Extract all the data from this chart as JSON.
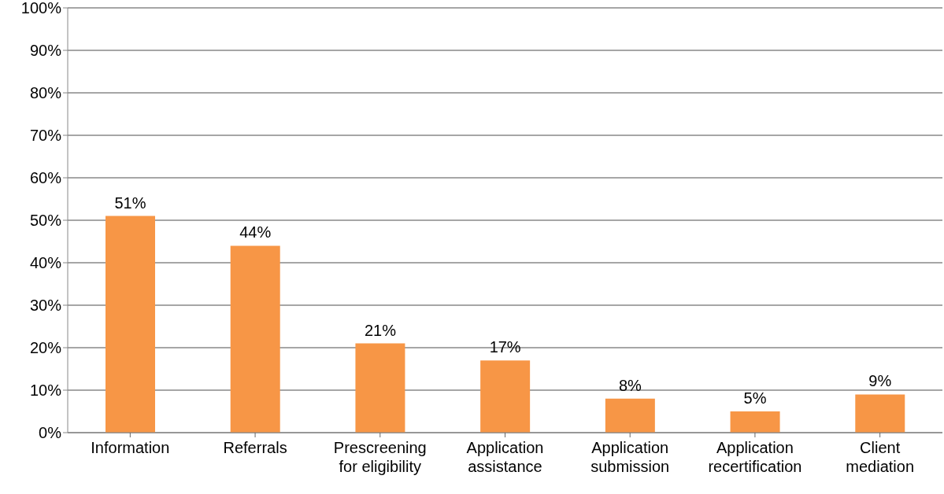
{
  "chart_data": {
    "type": "bar",
    "categories": [
      "Information",
      "Referrals",
      "Prescreening for eligibility",
      "Application assistance",
      "Application submission",
      "Application recertification",
      "Client mediation"
    ],
    "values": [
      51,
      44,
      21,
      17,
      8,
      5,
      9
    ],
    "value_labels": [
      "51%",
      "44%",
      "21%",
      "17%",
      "8%",
      "5%",
      "9%"
    ],
    "color": "#f79646",
    "ylim": [
      0,
      100
    ],
    "yticks": [
      {
        "value": 0,
        "label": "0%"
      },
      {
        "value": 10,
        "label": "10%"
      },
      {
        "value": 20,
        "label": "20%"
      },
      {
        "value": 30,
        "label": "30%"
      },
      {
        "value": 40,
        "label": "40%"
      },
      {
        "value": 50,
        "label": "50%"
      },
      {
        "value": 60,
        "label": "60%"
      },
      {
        "value": 70,
        "label": "70%"
      },
      {
        "value": 80,
        "label": "80%"
      },
      {
        "value": 90,
        "label": "90%"
      },
      {
        "value": 100,
        "label": "100%"
      }
    ],
    "grid": "y"
  }
}
